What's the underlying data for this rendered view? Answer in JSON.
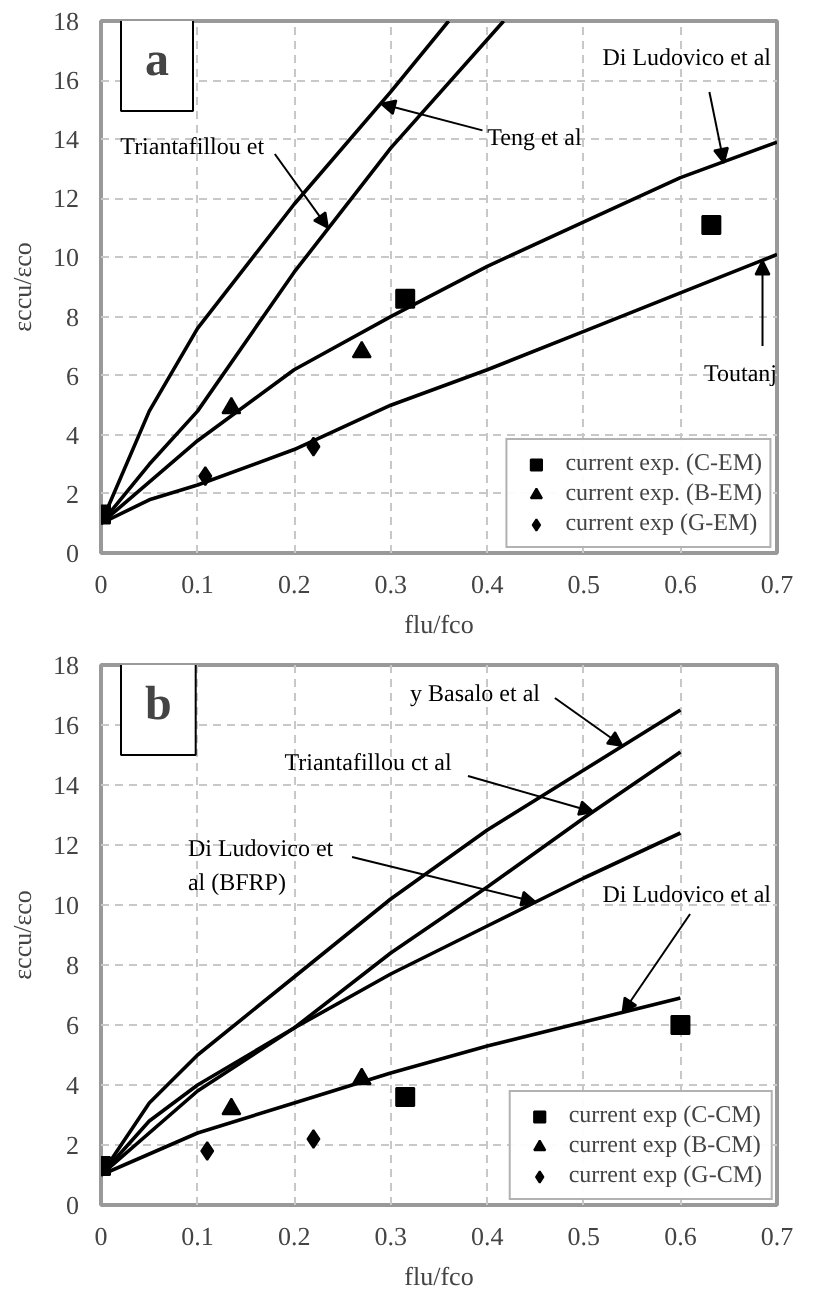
{
  "chart_data": [
    {
      "type": "line",
      "xlabel": "flu/fco",
      "ylabel": "εccu/εco",
      "xlim": [
        0,
        0.7
      ],
      "ylim": [
        0,
        18
      ],
      "xticks": [
        0,
        0.1,
        0.2,
        0.3,
        0.4,
        0.5,
        0.6,
        0.7
      ],
      "yticks": [
        0,
        2,
        4,
        6,
        8,
        10,
        12,
        14,
        16,
        18
      ],
      "grid": true,
      "legend": "bottom right",
      "line_style": "solid",
      "annotations": [
        "a",
        {
          "text": "Teng et al",
          "x": 0.29,
          "y": 15.2
        },
        {
          "text": "Triantafillou  et",
          "x": 0.235,
          "y": 11.0
        },
        {
          "text": "Di Ludovico  et al",
          "x": 0.645,
          "y": 13.2
        },
        {
          "text": "Toutanj",
          "x": 0.685,
          "y": 9.9
        }
      ],
      "series": [
        {
          "color": "#000000",
          "x": [
            0,
            0.05,
            0.1,
            0.2,
            0.3,
            0.36
          ],
          "values": [
            1,
            4.8,
            7.6,
            11.8,
            15.6,
            18
          ]
        },
        {
          "color": "#000000",
          "x": [
            0,
            0.05,
            0.1,
            0.2,
            0.3,
            0.417
          ],
          "values": [
            1,
            3,
            4.8,
            9.5,
            13.7,
            18
          ]
        },
        {
          "color": "#000000",
          "x": [
            0,
            0.1,
            0.2,
            0.3,
            0.4,
            0.5,
            0.6,
            0.7
          ],
          "values": [
            1,
            3.8,
            6.2,
            8,
            9.7,
            11.2,
            12.7,
            13.9
          ]
        },
        {
          "color": "#000000",
          "x": [
            0,
            0.05,
            0.1,
            0.2,
            0.3,
            0.4,
            0.5,
            0.6,
            0.7
          ],
          "values": [
            1,
            1.8,
            2.3,
            3.5,
            5,
            6.2,
            7.5,
            8.8,
            10.1
          ]
        },
        {
          "name": "current exp. (C-EM)",
          "type": "scatter",
          "marker": "square",
          "color": "#000000",
          "x": [
            0,
            0.315,
            0.632
          ],
          "values": [
            1.3,
            8.6,
            11.1
          ]
        },
        {
          "name": "current exp. (B-EM)",
          "type": "scatter",
          "marker": "triangle",
          "color": "#000000",
          "x": [
            0.135,
            0.27
          ],
          "values": [
            4.9,
            6.8
          ]
        },
        {
          "name": "current exp (G-EM)",
          "type": "scatter",
          "marker": "diamond",
          "color": "#000000",
          "x": [
            0.108,
            0.22
          ],
          "values": [
            2.6,
            3.6
          ]
        }
      ]
    },
    {
      "type": "line",
      "xlabel": "flu/fco",
      "ylabel": "εccu/εco",
      "xlim": [
        0,
        0.7
      ],
      "ylim": [
        0,
        18
      ],
      "xticks": [
        0,
        0.1,
        0.2,
        0.3,
        0.4,
        0.5,
        0.6,
        0.7
      ],
      "yticks": [
        0,
        2,
        4,
        6,
        8,
        10,
        12,
        14,
        16,
        18
      ],
      "grid": true,
      "legend": "bottom right",
      "line_style": "solid",
      "annotations": [
        "b",
        {
          "text": "y Basalo et al",
          "x": 0.54,
          "y": 15.3
        },
        {
          "text": "Triantafillou  ct al",
          "x": 0.51,
          "y": 13.1
        },
        {
          "text": "Di Ludovico  et\nal (BFRP)",
          "x": 0.45,
          "y": 10.1
        },
        {
          "text": "Di Ludovico  et al",
          "x": 0.54,
          "y": 6.4
        }
      ],
      "series": [
        {
          "color": "#000000",
          "x": [
            0,
            0.05,
            0.1,
            0.2,
            0.3,
            0.4,
            0.5,
            0.6
          ],
          "values": [
            1,
            3.4,
            5,
            7.6,
            10.2,
            12.5,
            14.5,
            16.5
          ]
        },
        {
          "color": "#000000",
          "x": [
            0,
            0.1,
            0.2,
            0.3,
            0.4,
            0.5,
            0.6
          ],
          "values": [
            1,
            3.8,
            5.9,
            8.4,
            10.6,
            12.9,
            15.1
          ]
        },
        {
          "color": "#000000",
          "x": [
            0,
            0.05,
            0.1,
            0.2,
            0.3,
            0.4,
            0.5,
            0.6
          ],
          "values": [
            1,
            2.8,
            4,
            5.9,
            7.7,
            9.3,
            10.9,
            12.4
          ]
        },
        {
          "color": "#000000",
          "x": [
            0,
            0.1,
            0.2,
            0.3,
            0.4,
            0.5,
            0.6
          ],
          "values": [
            1,
            2.4,
            3.4,
            4.4,
            5.3,
            6.1,
            6.9
          ]
        },
        {
          "name": "current exp (C-CM)",
          "type": "scatter",
          "marker": "square",
          "color": "#000000",
          "x": [
            0,
            0.315,
            0.6
          ],
          "values": [
            1.3,
            3.6,
            6
          ]
        },
        {
          "name": "current exp (B-CM)",
          "type": "scatter",
          "marker": "triangle",
          "color": "#000000",
          "x": [
            0.135,
            0.27
          ],
          "values": [
            3.2,
            4.2
          ]
        },
        {
          "name": "current exp (G-CM)",
          "type": "scatter",
          "marker": "diamond",
          "color": "#000000",
          "x": [
            0.11,
            0.22
          ],
          "values": [
            1.8,
            2.2
          ]
        }
      ]
    }
  ]
}
